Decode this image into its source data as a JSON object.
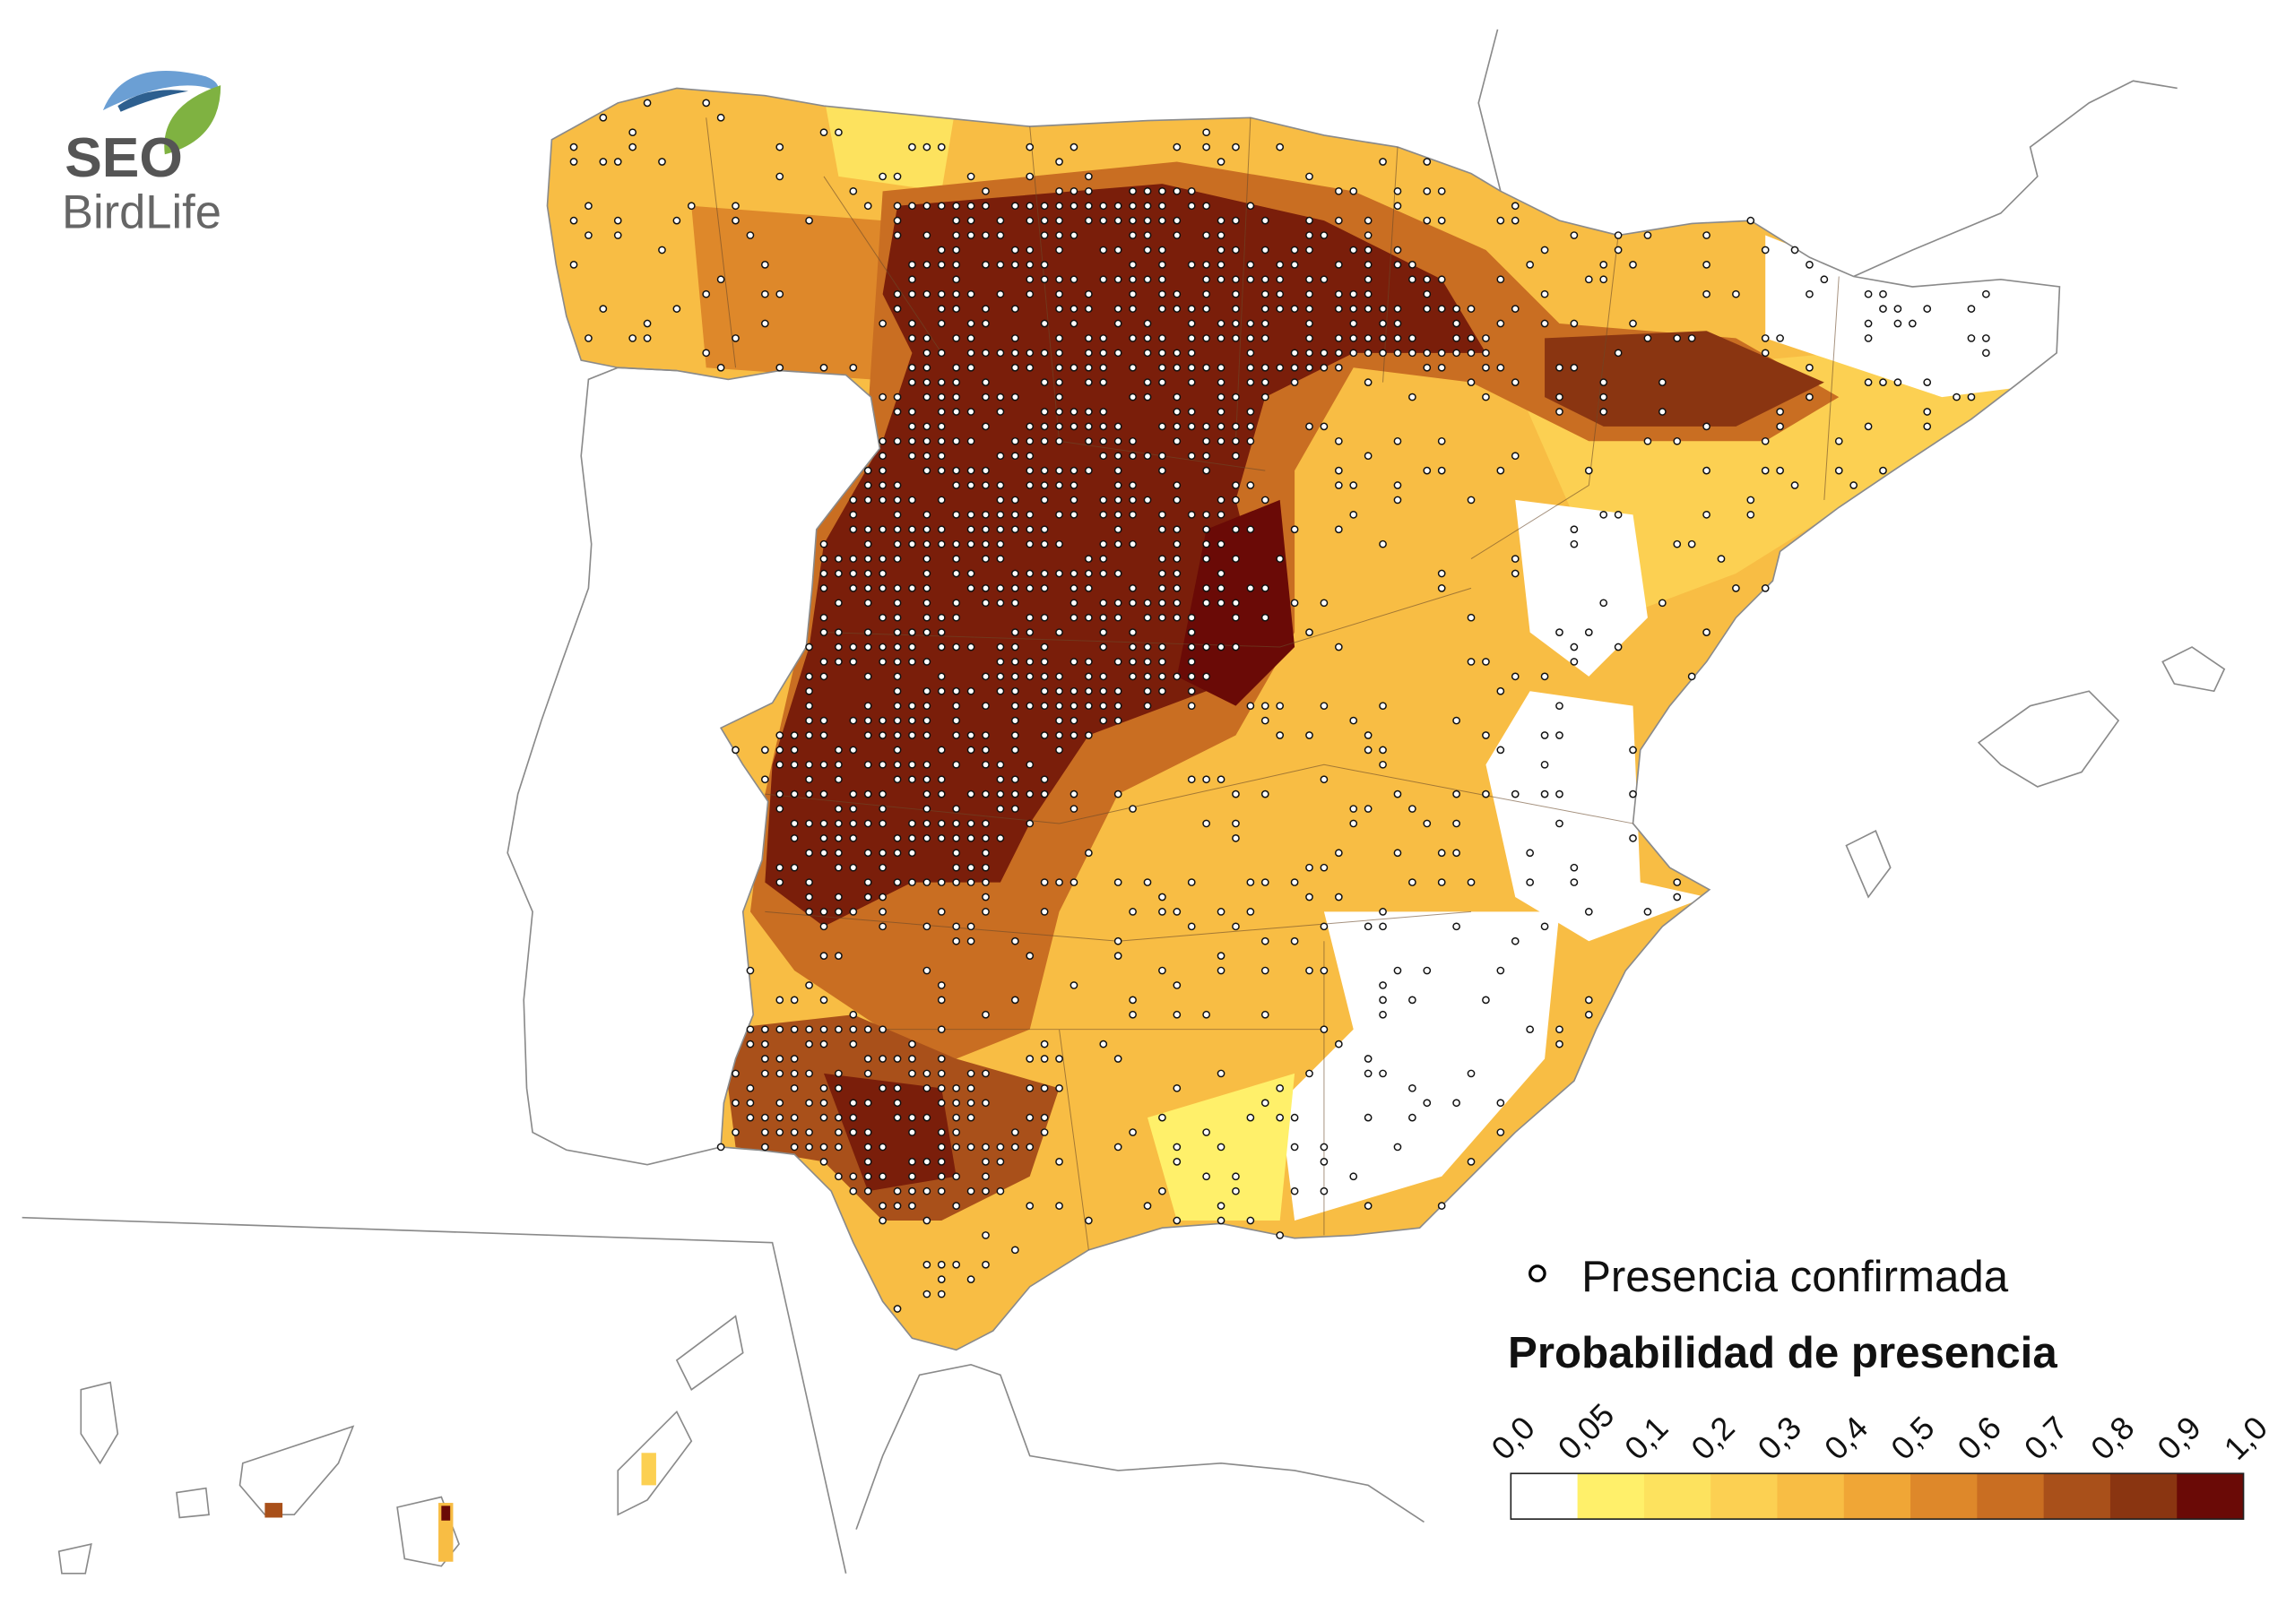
{
  "logo": {
    "line1": "SEO",
    "line2": "BirdLife"
  },
  "legend": {
    "presence_label": "Presencia confirmada",
    "title": "Probabilidad de presencia",
    "breaks": [
      "0,0",
      "0,05",
      "0,1",
      "0,2",
      "0,3",
      "0,4",
      "0,5",
      "0,6",
      "0,7",
      "0,8",
      "0,9",
      "1,0"
    ],
    "colors": [
      "#ffffff",
      "#fff06a",
      "#fde25e",
      "#fcd052",
      "#f8bd44",
      "#f0a636",
      "#de882a",
      "#c96e22",
      "#a9501a",
      "#8a3511",
      "#6a0a06"
    ]
  }
}
